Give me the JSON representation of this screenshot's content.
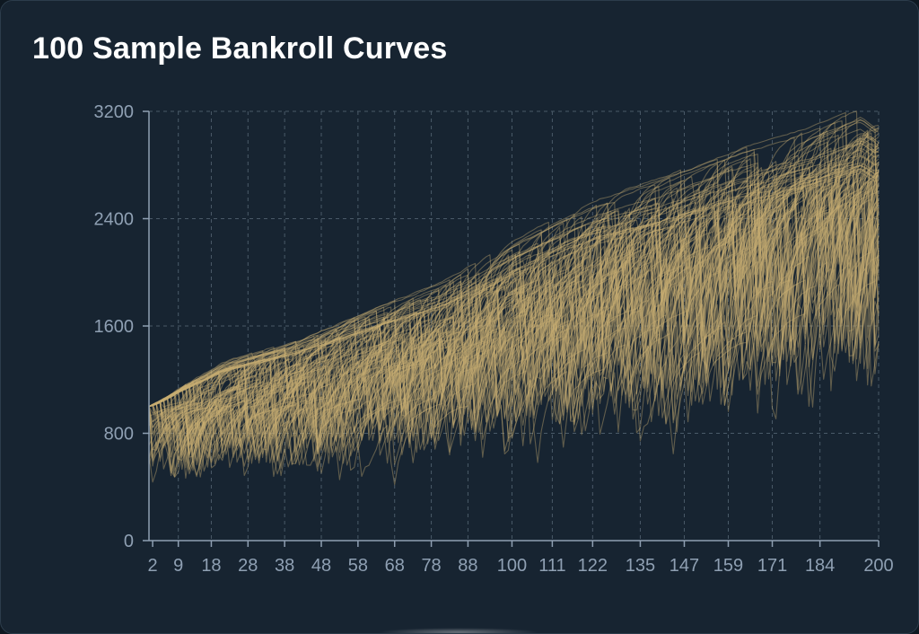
{
  "chart_data": {
    "type": "line",
    "title": "100 Sample Bankroll Curves",
    "series_count": 100,
    "line_color": "#c8ad72",
    "background": "#172431",
    "grid": true,
    "grid_color": "#4a5a68",
    "axis_color": "#8fa0b3",
    "x_range": [
      1,
      200
    ],
    "ylim": [
      0,
      3200
    ],
    "y_ticks": [
      0,
      800,
      1600,
      2400,
      3200
    ],
    "x_ticks": [
      2,
      9,
      18,
      28,
      38,
      48,
      58,
      68,
      78,
      88,
      100,
      111,
      122,
      135,
      147,
      159,
      171,
      184,
      200
    ],
    "x_grid": [
      1,
      9,
      18,
      28,
      38,
      48,
      58,
      68,
      78,
      88,
      100,
      111,
      122,
      135,
      147,
      159,
      171,
      184,
      200
    ],
    "start_value": 1000,
    "series_upper_envelope": {
      "x": [
        1,
        10,
        20,
        40,
        60,
        80,
        100,
        120,
        140,
        160,
        180,
        195,
        200
      ],
      "y": [
        1000,
        1150,
        1300,
        1450,
        1650,
        1850,
        2150,
        2400,
        2550,
        2750,
        2900,
        3050,
        2950
      ]
    }
  }
}
